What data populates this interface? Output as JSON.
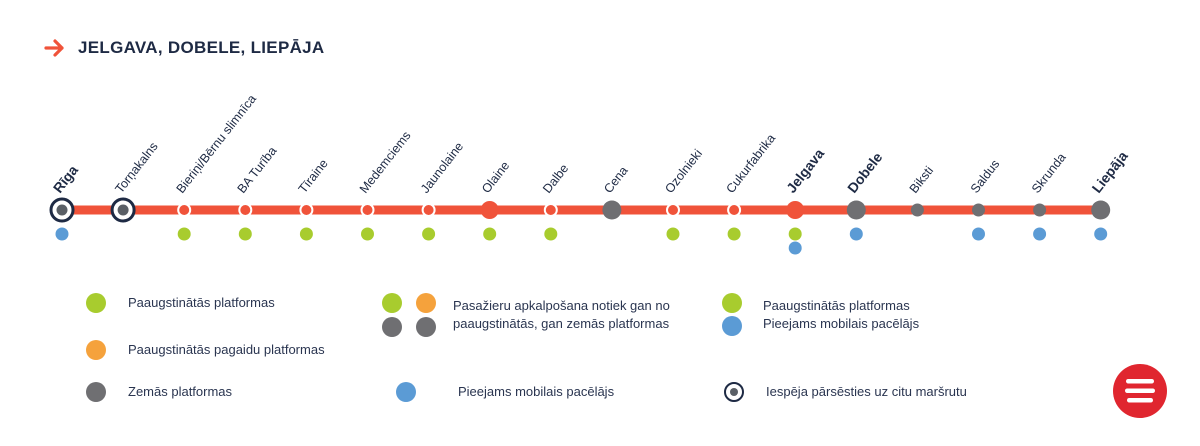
{
  "header": {
    "title": "JELGAVA, DOBELE, LIEPĀJA",
    "icon": "arrow-right-icon"
  },
  "colors": {
    "line": "#f0533a",
    "green": "#a8cc2e",
    "orange": "#f5a23c",
    "gray": "#6f6f72",
    "blue": "#5b9bd5",
    "navy": "#1e2a44"
  },
  "stations": [
    {
      "name": "Rīga",
      "bold": true,
      "marker": "transfer",
      "platforms": [
        "blue"
      ]
    },
    {
      "name": "Torņakalns",
      "bold": false,
      "marker": "transfer",
      "platforms": []
    },
    {
      "name": "Bieriņi/Bērnu slimnīca",
      "bold": false,
      "marker": "small",
      "platforms": [
        "green"
      ]
    },
    {
      "name": "BA Turība",
      "bold": false,
      "marker": "small",
      "platforms": [
        "green"
      ]
    },
    {
      "name": "Tīraine",
      "bold": false,
      "marker": "small",
      "platforms": [
        "green"
      ]
    },
    {
      "name": "Medemciems",
      "bold": false,
      "marker": "small",
      "platforms": [
        "green"
      ]
    },
    {
      "name": "Jaunolaine",
      "bold": false,
      "marker": "small",
      "platforms": [
        "green"
      ]
    },
    {
      "name": "Olaine",
      "bold": false,
      "marker": "big-red",
      "platforms": [
        "green"
      ]
    },
    {
      "name": "Dalbe",
      "bold": false,
      "marker": "small",
      "platforms": [
        "green"
      ]
    },
    {
      "name": "Cena",
      "bold": false,
      "marker": "big-gray",
      "platforms": []
    },
    {
      "name": "Ozolnieki",
      "bold": false,
      "marker": "small",
      "platforms": [
        "green"
      ]
    },
    {
      "name": "Cukurfabrika",
      "bold": false,
      "marker": "small",
      "platforms": [
        "green"
      ]
    },
    {
      "name": "Jelgava",
      "bold": true,
      "marker": "big-red",
      "platforms": [
        "green",
        "blue"
      ]
    },
    {
      "name": "Dobele",
      "bold": true,
      "marker": "big-gray",
      "platforms": [
        "blue"
      ]
    },
    {
      "name": "Biksti",
      "bold": false,
      "marker": "small-gray",
      "platforms": []
    },
    {
      "name": "Saldus",
      "bold": false,
      "marker": "small-gray",
      "platforms": [
        "blue"
      ]
    },
    {
      "name": "Skrunda",
      "bold": false,
      "marker": "small-gray",
      "platforms": [
        "blue"
      ]
    },
    {
      "name": "Liepāja",
      "bold": true,
      "marker": "big-gray",
      "platforms": [
        "blue"
      ]
    }
  ],
  "legend": {
    "raised": "Paaugstinātās platformas",
    "raised_track": "Paaugstinātās pagaidu platformas",
    "low": "Zemās platformas",
    "mixed_line1": "Pasažieru apkalpošana notiek gan no",
    "mixed_line2": "paaugstinātās, gan zemās platformas",
    "raised_lift_raised": "Paaugstinātās platformas",
    "raised_lift_lift": "Pieejams mobilais pacēlājs",
    "mobile_lift": "Pieejams mobilais pacēlājs",
    "transfer": "Iespēja pārsēsties uz citu maršrutu"
  },
  "brand": {
    "icon": "train-logo-icon"
  }
}
